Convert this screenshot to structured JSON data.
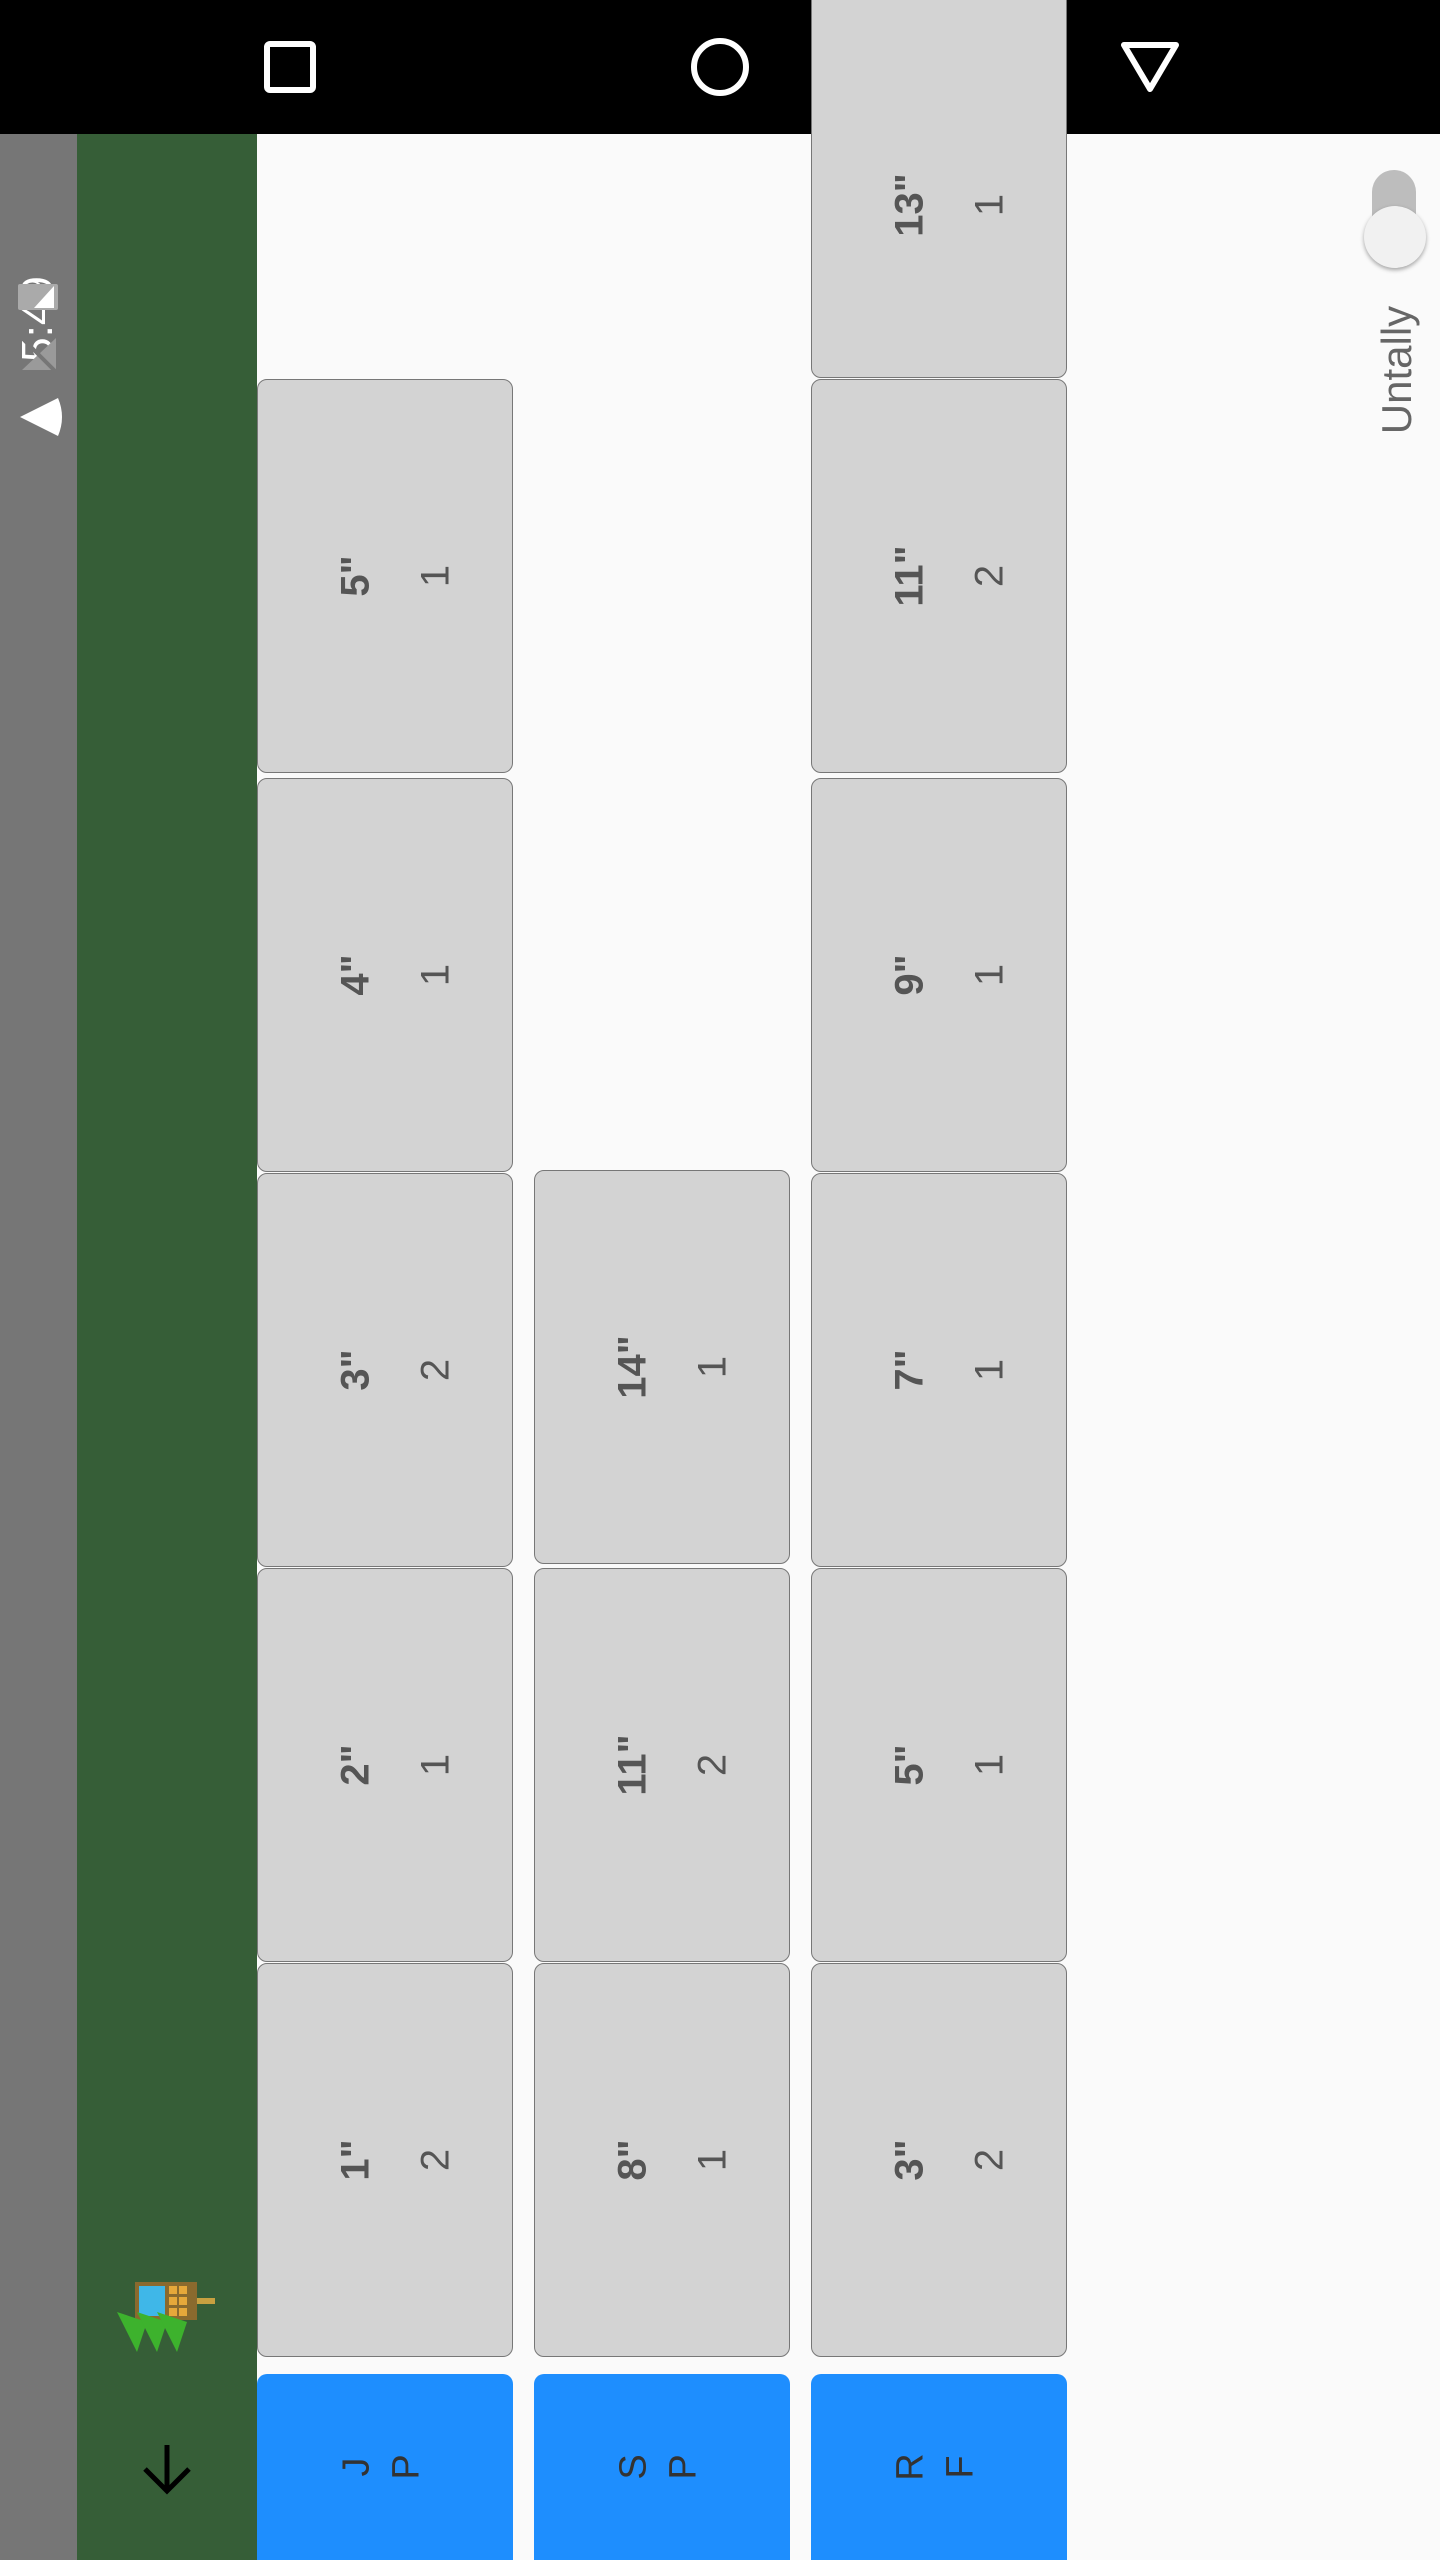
{
  "status_bar": {
    "time": "5:49"
  },
  "nav_bar": {
    "buttons": [
      "recents",
      "home",
      "back"
    ]
  },
  "rows": [
    {
      "button": {
        "line1": "J",
        "line2": "P"
      },
      "cells": [
        {
          "label": "1\"",
          "count": "2"
        },
        {
          "label": "2\"",
          "count": "1"
        },
        {
          "label": "3\"",
          "count": "2"
        },
        {
          "label": "4\"",
          "count": "1"
        },
        {
          "label": "5\"",
          "count": "1"
        }
      ]
    },
    {
      "button": {
        "line1": "S",
        "line2": "P"
      },
      "cells": [
        {
          "label": "8\"",
          "count": "1"
        },
        {
          "label": "11\"",
          "count": "2"
        },
        {
          "label": "14\"",
          "count": "1"
        }
      ]
    },
    {
      "button": {
        "line1": "R",
        "line2": "F"
      },
      "cells": [
        {
          "label": "3\"",
          "count": "2"
        },
        {
          "label": "5\"",
          "count": "1"
        },
        {
          "label": "7\"",
          "count": "1"
        },
        {
          "label": "9\"",
          "count": "1"
        },
        {
          "label": "11\"",
          "count": "2"
        },
        {
          "label": "13\"",
          "count": "1"
        }
      ]
    }
  ],
  "toggle": {
    "label": "Untally",
    "on": false
  },
  "colors": {
    "app_bar": "#365e37",
    "row_button": "#1e8efe",
    "cell": "#d3d3d3"
  }
}
